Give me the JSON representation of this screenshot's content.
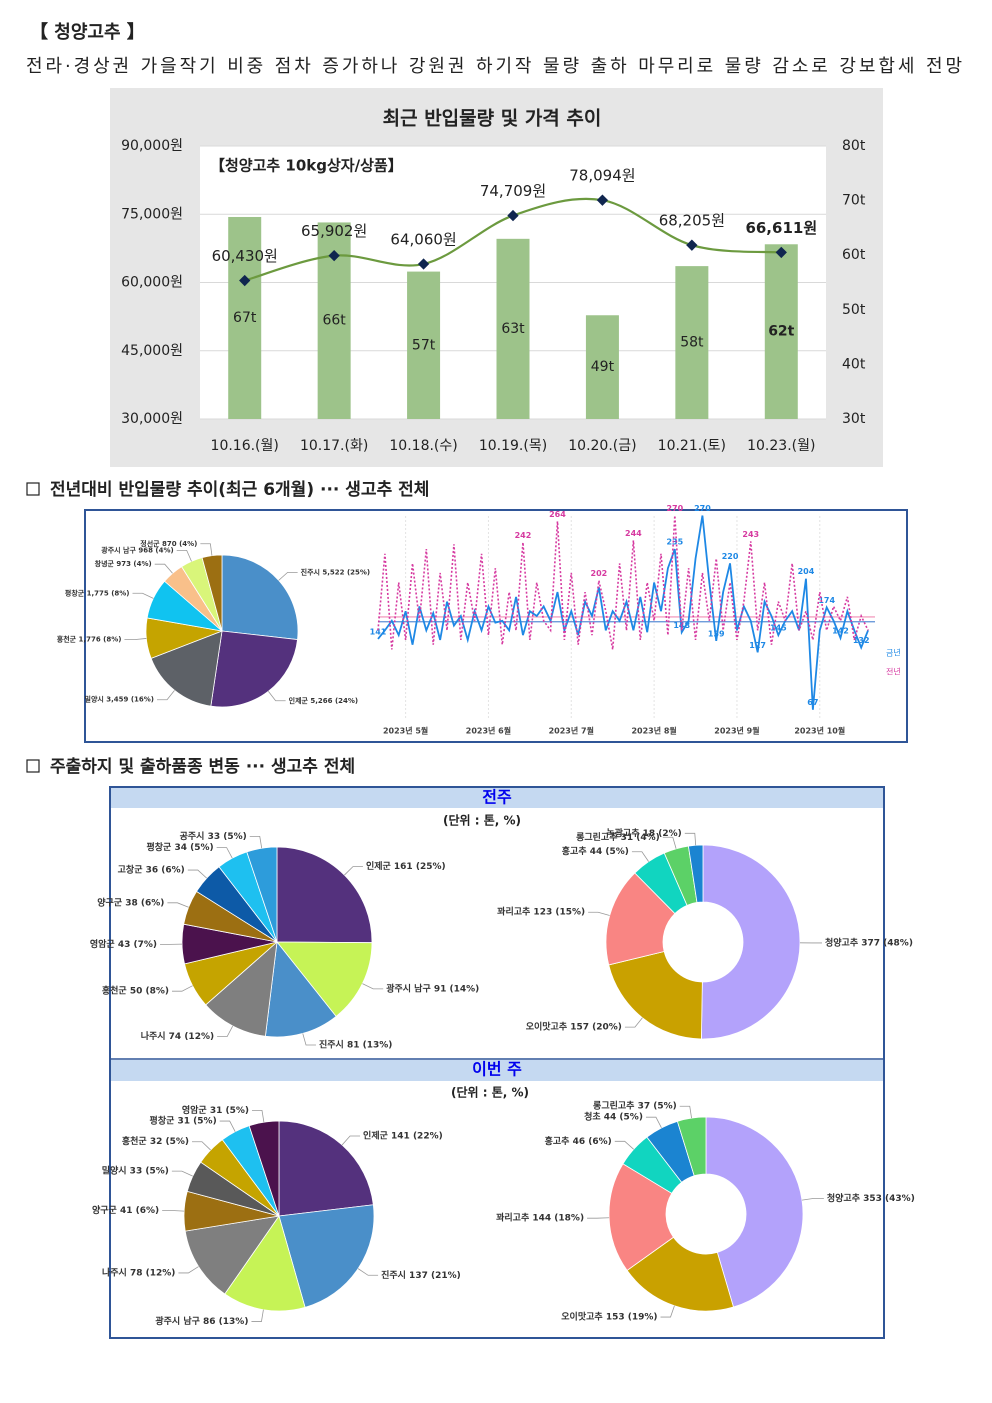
{
  "header": {
    "title": "【 청양고추 】",
    "summary": "전라·경상권 가을작기 비중 점차 증가하나 강원권 하기작 물량 출하 마무리로 물량 감소로 강보합세 전망"
  },
  "sections": [
    "전년대비 반입물량 추이(최근 6개월) ··· 생고추 전체",
    "주출하지 및 출하품종 변동 ··· 생고추 전체"
  ],
  "panels": [
    {
      "title": "전주",
      "unit": "(단위 : 톤, %)"
    },
    {
      "title": "이번 주",
      "unit": "(단위 : 톤, %)"
    }
  ],
  "chart_data": [
    {
      "type": "combo",
      "title": "최근 반입물량 및 가격 추이",
      "annotation": "【청양고추 10kg상자/상품】",
      "categories": [
        "10.16.(월)",
        "10.17.(화)",
        "10.18.(수)",
        "10.19.(목)",
        "10.20.(금)",
        "10.21.(토)",
        "10.23.(월)"
      ],
      "ylim": [
        30000,
        90000
      ],
      "yticks": [
        {
          "value": 30000,
          "label": "30,000원"
        },
        {
          "value": 45000,
          "label": "45,000원"
        },
        {
          "value": 60000,
          "label": "60,000원"
        },
        {
          "value": 75000,
          "label": "75,000원"
        },
        {
          "value": 90000,
          "label": "90,000원"
        }
      ],
      "y2lim": [
        30,
        80
      ],
      "y2ticks": [
        {
          "value": 30,
          "label": "30t"
        },
        {
          "value": 40,
          "label": "40t"
        },
        {
          "value": 50,
          "label": "50t"
        },
        {
          "value": 60,
          "label": "60t"
        },
        {
          "value": 70,
          "label": "70t"
        },
        {
          "value": 80,
          "label": "80t"
        }
      ],
      "grid": true,
      "series": [
        {
          "type": "bar",
          "axis": "y2",
          "color": "#9dc38a",
          "values": [
            67,
            66,
            57,
            63,
            49,
            58,
            62
          ],
          "value_labels": [
            "67t",
            "66t",
            "57t",
            "63t",
            "49t",
            "58t",
            "62t"
          ]
        },
        {
          "type": "line",
          "color": "#6c9a3f",
          "marker_color": "#10264f",
          "values": [
            60430,
            65902,
            64060,
            74709,
            78094,
            68205,
            66611
          ],
          "value_labels": [
            "60,430원",
            "65,902원",
            "64,060원",
            "74,709원",
            "78,094원",
            "68,205원",
            "66,611원"
          ]
        }
      ]
    },
    {
      "type": "pie",
      "values": [
        5522,
        5266,
        3459,
        1776,
        1775,
        973,
        968,
        870
      ],
      "value_labels": [
        "진주시 5,522 (25%)",
        "인제군 5,266 (24%)",
        "밀양시 3,459 (16%)",
        "홍천군 1,776 (8%)",
        "평창군 1,775 (8%)",
        "창녕군 973 (4%)",
        "광주시 남구 968 (4%)",
        "정선군 870 (4%)"
      ],
      "colors": [
        "#4a8fc9",
        "#54317d",
        "#5d6167",
        "#c5a400",
        "#10c3f0",
        "#f9c08a",
        "#d9f57a",
        "#9c6f12"
      ]
    },
    {
      "type": "line",
      "x": [
        0,
        1,
        2,
        3,
        4,
        5,
        6,
        7,
        8,
        9,
        10,
        11,
        12,
        13,
        14,
        15,
        16,
        17,
        18,
        19,
        20,
        21,
        22,
        23,
        24,
        25,
        26,
        27,
        28,
        29,
        30,
        31,
        32,
        33,
        34,
        35,
        36,
        37,
        38,
        39,
        40,
        41,
        42,
        43,
        44,
        45,
        46,
        47,
        48,
        49,
        50,
        51,
        52,
        53,
        54,
        55,
        56,
        57,
        58,
        59,
        60,
        61,
        62,
        63,
        64,
        65,
        66,
        67,
        68,
        69,
        70,
        71
      ],
      "xlim": [
        0,
        72
      ],
      "xticks": [
        {
          "value": 4,
          "label": "2023년 5월"
        },
        {
          "value": 16,
          "label": "2023년 6월"
        },
        {
          "value": 28,
          "label": "2023년 7월"
        },
        {
          "value": 40,
          "label": "2023년 8월"
        },
        {
          "value": 52,
          "label": "2023년 9월"
        },
        {
          "value": 64,
          "label": "2023년 10월"
        }
      ],
      "ylim": [
        50,
        280
      ],
      "hlines": [
        {
          "value": 159,
          "color": "#5b8fd6"
        },
        {
          "value": 164,
          "color": "#f08cb5"
        }
      ],
      "series": [
        {
          "name": "금년",
          "color": "#1e88e5",
          "dash": false,
          "values": [
            141,
            150,
            160,
            145,
            170,
            135,
            175,
            150,
            168,
            140,
            180,
            155,
            165,
            140,
            170,
            150,
            175,
            158,
            160,
            150,
            185,
            145,
            170,
            165,
            175,
            160,
            190,
            150,
            170,
            145,
            180,
            165,
            195,
            150,
            170,
            160,
            180,
            150,
            185,
            148,
            200,
            170,
            215,
            235,
            148,
            160,
            225,
            270,
            200,
            139,
            190,
            220,
            150,
            175,
            160,
            127,
            180,
            165,
            145,
            160,
            170,
            150,
            204,
            67,
            150,
            174,
            160,
            142,
            170,
            150,
            132,
            150
          ],
          "value_labels": [
            "141",
            null,
            null,
            null,
            null,
            null,
            null,
            null,
            null,
            null,
            null,
            null,
            null,
            null,
            null,
            null,
            null,
            null,
            null,
            null,
            null,
            null,
            null,
            null,
            null,
            null,
            null,
            null,
            null,
            null,
            null,
            null,
            null,
            null,
            null,
            null,
            null,
            null,
            null,
            null,
            null,
            null,
            null,
            "235",
            "148",
            null,
            null,
            "270",
            null,
            "139",
            null,
            "220",
            null,
            null,
            null,
            "127",
            null,
            null,
            "145",
            null,
            null,
            null,
            "204",
            "67",
            null,
            "174",
            null,
            "142",
            null,
            null,
            "132",
            null
          ]
        },
        {
          "name": "전년",
          "color": "#d63aa0",
          "dash": true,
          "values": [
            150,
            230,
            130,
            200,
            140,
            220,
            160,
            235,
            135,
            210,
            150,
            240,
            140,
            200,
            160,
            230,
            145,
            215,
            135,
            190,
            150,
            242,
            140,
            200,
            160,
            150,
            264,
            140,
            210,
            135,
            190,
            145,
            202,
            170,
            130,
            220,
            150,
            244,
            140,
            200,
            160,
            230,
            145,
            270,
            150,
            215,
            140,
            210,
            160,
            225,
            150,
            200,
            140,
            180,
            243,
            150,
            200,
            135,
            180,
            160,
            220,
            150,
            170,
            140,
            190,
            150,
            175,
            160,
            185,
            140,
            165,
            150
          ],
          "value_labels": [
            null,
            null,
            null,
            null,
            null,
            null,
            null,
            null,
            null,
            null,
            null,
            null,
            null,
            null,
            null,
            null,
            null,
            null,
            null,
            null,
            null,
            "242",
            null,
            null,
            null,
            null,
            "264",
            null,
            null,
            null,
            null,
            null,
            "202",
            null,
            null,
            null,
            null,
            "244",
            null,
            null,
            null,
            null,
            null,
            "270",
            null,
            null,
            null,
            null,
            null,
            null,
            null,
            null,
            null,
            null,
            "243",
            null,
            null,
            null,
            null,
            null,
            null,
            null,
            null,
            null,
            null,
            null,
            null,
            null,
            null,
            null,
            null,
            null
          ]
        }
      ]
    },
    {
      "type": "pie",
      "values": [
        161,
        91,
        81,
        74,
        50,
        43,
        38,
        36,
        34,
        33
      ],
      "value_labels": [
        "인제군 161 (25%)",
        "광주시 남구 91 (14%)",
        "진주시 81 (13%)",
        "나주시 74 (12%)",
        "홍천군 50 (8%)",
        "영암군 43 (7%)",
        "양구군 38 (6%)",
        "고창군 36 (6%)",
        "평창군 34 (5%)",
        "공주시 33 (5%)"
      ],
      "colors": [
        "#54317d",
        "#c6f356",
        "#4a8fc9",
        "#7f7f7f",
        "#c5a400",
        "#4b124d",
        "#9c6f12",
        "#0d5aa7",
        "#1ec0f0",
        "#2d9cdb"
      ]
    },
    {
      "type": "donut",
      "values": [
        377,
        157,
        123,
        44,
        31,
        18
      ],
      "value_labels": [
        "청양고추 377 (48%)",
        "오이맛고추 157 (20%)",
        "꽈리고추 123 (15%)",
        "홍고추 44 (5%)",
        "롱그린고추 31 (4%)",
        "녹광고추 18 (2%)"
      ],
      "colors": [
        "#b3a2fb",
        "#c9a100",
        "#f98583",
        "#11d5c0",
        "#5cd167",
        "#1b84d1"
      ]
    },
    {
      "type": "pie",
      "values": [
        141,
        137,
        86,
        78,
        41,
        33,
        32,
        31,
        31
      ],
      "value_labels": [
        "인제군 141 (22%)",
        "진주시 137 (21%)",
        "광주시 남구 86 (13%)",
        "나주시 78 (12%)",
        "양구군 41 (6%)",
        "밀양시 33 (5%)",
        "홍천군 32 (5%)",
        "평창군 31 (5%)",
        "영암군 31 (5%)"
      ],
      "colors": [
        "#54317d",
        "#4a8fc9",
        "#c6f356",
        "#7f7f7f",
        "#9c6f12",
        "#595959",
        "#c5a400",
        "#1ec0f0",
        "#4b124d"
      ]
    },
    {
      "type": "donut",
      "values": [
        353,
        153,
        144,
        46,
        44,
        37
      ],
      "value_labels": [
        "청양고추 353 (43%)",
        "오이맛고추 153 (19%)",
        "꽈리고추 144 (18%)",
        "홍고추 46 (6%)",
        "청초 44 (5%)",
        "롱그린고추 37 (5%)"
      ],
      "colors": [
        "#b3a2fb",
        "#c9a100",
        "#f98583",
        "#11d5c0",
        "#1b84d1",
        "#5cd167"
      ]
    }
  ]
}
